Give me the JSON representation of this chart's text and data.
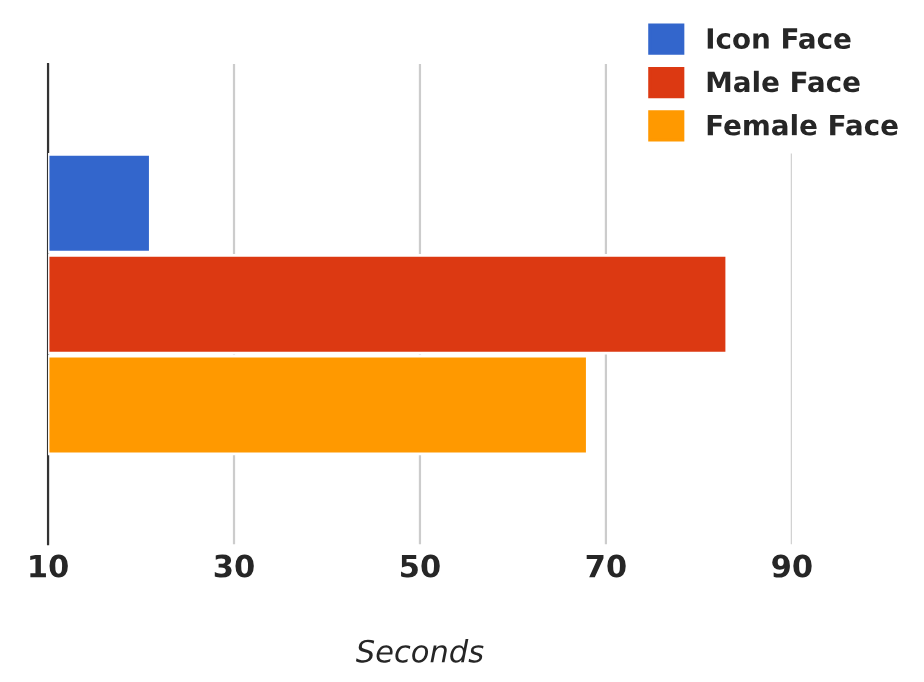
{
  "chart_data": {
    "type": "bar",
    "orientation": "horizontal",
    "categories": [
      null
    ],
    "series": [
      {
        "name": "Icon Face",
        "color": "#3366cc",
        "values": [
          21
        ]
      },
      {
        "name": "Male Face",
        "color": "#dc3912",
        "values": [
          83
        ]
      },
      {
        "name": "Female Face",
        "color": "#ff9900",
        "values": [
          68
        ]
      }
    ],
    "xlabel": "Seconds",
    "xlim": [
      10,
      90
    ],
    "xticks": [
      10,
      30,
      50,
      70,
      90
    ],
    "grid": "x",
    "legend": "top right"
  }
}
